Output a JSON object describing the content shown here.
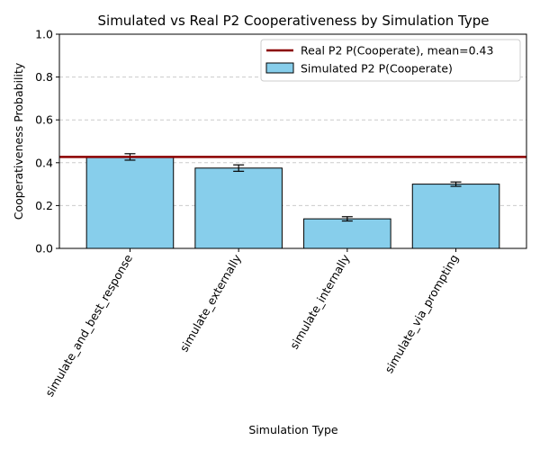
{
  "chart_data": {
    "type": "bar",
    "title": "Simulated vs Real P2 Cooperativeness by Simulation Type",
    "xlabel": "Simulation Type",
    "ylabel": "Cooperativeness Probability",
    "ylim": [
      0,
      1.0
    ],
    "yticks": [
      "0.0",
      "0.2",
      "0.4",
      "0.6",
      "0.8",
      "1.0"
    ],
    "grid": "horizontal dashed",
    "categories": [
      "simulate_and_best_response",
      "simulate_externally",
      "simulate_internally",
      "simulate_via_prompting"
    ],
    "series": [
      {
        "name": "Simulated P2 P(Cooperate)",
        "values": [
          0.427,
          0.375,
          0.138,
          0.3
        ],
        "errors": [
          0.015,
          0.015,
          0.01,
          0.01
        ],
        "color": "#87CEEB"
      }
    ],
    "reference_line": {
      "name": "Real P2 P(Cooperate), mean=0.43",
      "value": 0.427,
      "color": "#8B0000"
    },
    "legend": {
      "position": "top-right",
      "entries": [
        "Real P2 P(Cooperate), mean=0.43",
        "Simulated P2 P(Cooperate)"
      ]
    }
  }
}
